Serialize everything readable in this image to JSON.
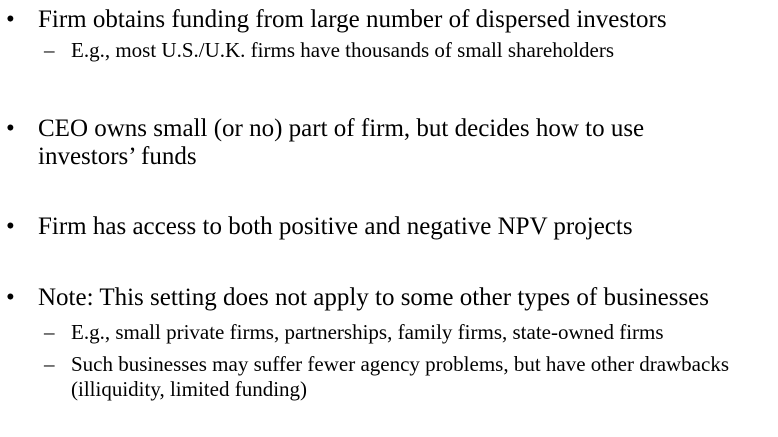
{
  "bullets": [
    {
      "text": "Firm obtains funding from large number of dispersed investors",
      "subs": [
        "E.g., most U.S./U.K. firms have thousands of small  shareholders"
      ]
    },
    {
      "text": "CEO owns small (or no) part of firm, but decides how to use investors’ funds",
      "subs": []
    },
    {
      "text": "Firm has access to both positive and negative NPV projects",
      "subs": []
    },
    {
      "text": "Note: This setting does not apply to some other types of businesses",
      "subs": [
        "E.g., small private firms, partnerships, family firms, state-owned firms",
        "Such businesses may suffer fewer agency problems, but have other drawbacks (illiquidity, limited funding)"
      ]
    }
  ],
  "symbols": {
    "bullet": "•",
    "dash": "–"
  }
}
